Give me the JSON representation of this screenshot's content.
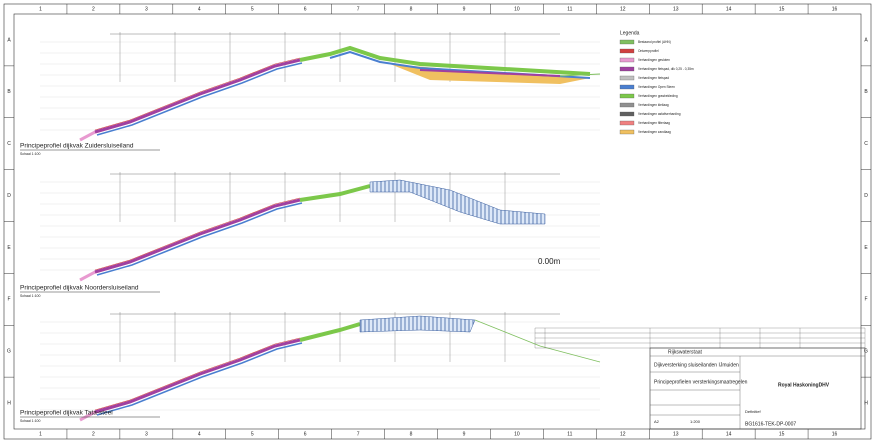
{
  "grid": {
    "columns": [
      "1",
      "2",
      "3",
      "4",
      "5",
      "6",
      "7",
      "8",
      "9",
      "10",
      "11",
      "12",
      "13",
      "14",
      "15",
      "16"
    ],
    "rows": [
      "A",
      "B",
      "C",
      "D",
      "E",
      "F",
      "G",
      "H"
    ]
  },
  "profiles": [
    {
      "title": "Principeprofiel dijkvak Zuidersluiseiland",
      "scale": "Schaal 1:100"
    },
    {
      "title": "Principeprofiel dijkvak Noordersluiseiland",
      "scale": "Schaal 1:100"
    },
    {
      "title": "Principeprofiel dijkvak Tata-steel",
      "scale": "Schaal 1:100"
    }
  ],
  "marker": "0.00m",
  "legend": {
    "title": "Legenda",
    "items": [
      {
        "label": "Bestaand profiel (AHN)",
        "color": "#7fbf5f"
      },
      {
        "label": "Ontwerpprofiel",
        "color": "#d04040"
      },
      {
        "label": "Verhardingen gesloten",
        "color": "#e89ad0"
      },
      {
        "label": "Verhardingen fietspad, dik 0,25 - 0,35m",
        "color": "#a040a0"
      },
      {
        "label": "Verhardingen fietspad",
        "color": "#c0c0c0"
      },
      {
        "label": "Verhardingen Open Steen",
        "color": "#4a7fd0"
      },
      {
        "label": "Verhardingen grasbekleding",
        "color": "#7cc84a"
      },
      {
        "label": "Verhardingen kleilaag",
        "color": "#909090"
      },
      {
        "label": "Verhardingen asfaltverharding",
        "color": "#606060"
      },
      {
        "label": "Verhardingen filterlaag",
        "color": "#f08080"
      },
      {
        "label": "Verhardingen zandlaag",
        "color": "#f0c060"
      }
    ]
  },
  "title_block": {
    "client": "Rijkswaterstaat",
    "project": "Dijkversterking sluiseilanden IJmuiden",
    "drawing": "Principeprofielen versterkingsmaatregelen",
    "company": "Royal HaskoningDHV",
    "status": "Definitief",
    "format": "A2",
    "scale": "1:200",
    "number": "BG1616-TEK-DP-0007"
  }
}
